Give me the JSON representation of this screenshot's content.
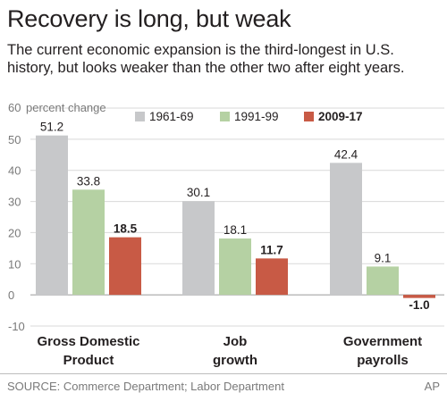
{
  "title": "Recovery is long, but weak",
  "subtitle": "The current economic expansion is the third-longest in U.S. history, but looks weaker than the other two after eight years.",
  "source": "SOURCE: Commerce Department; Labor Department",
  "credit": "AP",
  "chart_data": {
    "type": "bar",
    "ylabel": "percent change",
    "ylim": [
      -10,
      60
    ],
    "yticks": [
      -10,
      0,
      10,
      20,
      30,
      40,
      50,
      60
    ],
    "grid": true,
    "legend_position": "top",
    "categories": [
      [
        "Gross Domestic",
        "Product"
      ],
      [
        "Job",
        "growth"
      ],
      [
        "Government",
        "payrolls"
      ]
    ],
    "series": [
      {
        "name": "1961-69",
        "color": "#c7c8ca",
        "values": [
          51.2,
          30.1,
          42.4
        ]
      },
      {
        "name": "1991-99",
        "color": "#b5d1a3",
        "values": [
          33.8,
          18.1,
          9.1
        ]
      },
      {
        "name": "2009-17",
        "color": "#c85a45",
        "bold": true,
        "values": [
          18.5,
          11.7,
          -1.0
        ]
      }
    ]
  }
}
